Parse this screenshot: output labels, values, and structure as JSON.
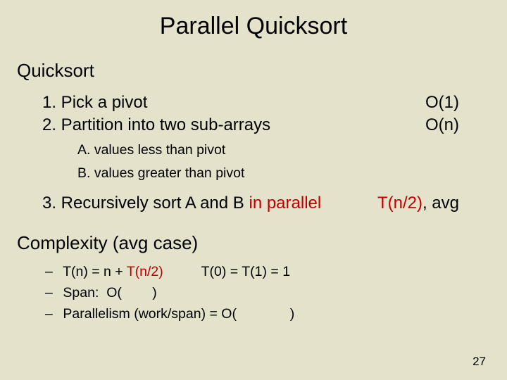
{
  "colors": {
    "background": "#e4e2cb",
    "text": "#000000",
    "highlight": "#c00000"
  },
  "title": "Parallel Quicksort",
  "section1": "Quicksort",
  "steps": {
    "s1": {
      "text": "1. Pick a pivot",
      "cost": "O(1)"
    },
    "s2": {
      "text": "2. Partition into two sub-arrays",
      "cost": "O(n)"
    },
    "subA": "A. values less than pivot",
    "subB": "B. values greater than pivot",
    "s3_prefix": "3. Recursively sort A and B ",
    "s3_highlight": "in parallel",
    "s3_cost_hl": "T(n/2)",
    "s3_cost_rest": ", avg"
  },
  "section2": "Complexity (avg case)",
  "bullets": {
    "b1_prefix": "T(n) = n + ",
    "b1_hl": "T(n/2)",
    "b1_mid": "          T(0) = T(1) = 1",
    "b2": "Span:  O(        )",
    "b3": "Parallelism (work/span) = O(              )"
  },
  "pagenum": "27",
  "typography": {
    "title_fontsize": 34,
    "heading_fontsize": 26,
    "body_fontsize": 24,
    "sub_fontsize": 19.5,
    "pagenum_fontsize": 17,
    "font_family": "Arial"
  }
}
